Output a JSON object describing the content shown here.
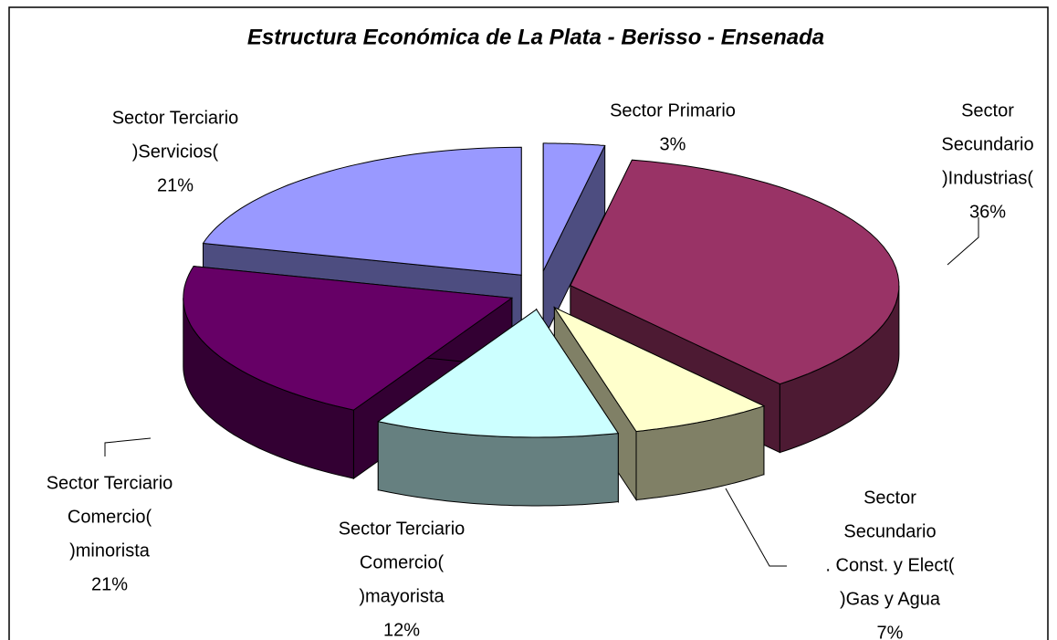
{
  "chart_data": {
    "type": "pie3d",
    "title": "Estructura Económica de La Plata - Berisso - Ensenada",
    "categories": [
      [
        "Sector Primario"
      ],
      [
        "Sector",
        "Secundario",
        ")Industrias("
      ],
      [
        "Sector",
        "Secundario",
        ". Const. y Elect(",
        ")Gas y Agua"
      ],
      [
        "Sector Terciario",
        "Comercio(",
        ")mayorista"
      ],
      [
        "Sector Terciario",
        "Comercio(",
        ")minorista"
      ],
      [
        "Sector Terciario",
        ")Servicios("
      ]
    ],
    "values": [
      3,
      36,
      7,
      12,
      21,
      21
    ],
    "value_labels": [
      "3%",
      "36%",
      "7%",
      "12%",
      "21%",
      "21%"
    ],
    "colors": [
      "#9999ff",
      "#993366",
      "#ffffcc",
      "#ccffff",
      "#660066",
      "#9999ff"
    ]
  }
}
